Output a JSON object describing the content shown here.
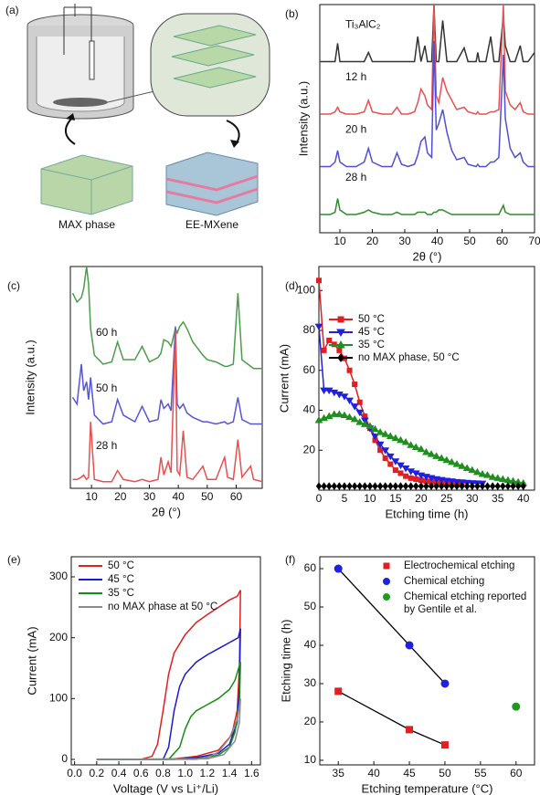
{
  "schematic": {
    "panel_label": "(a)",
    "labels": [
      "MAX phase",
      "EE-MXene"
    ]
  },
  "chart_data": [
    {
      "type": "line",
      "panel_label": "(b)",
      "x_label": "2θ (°)",
      "y_label": "Intensity (a.u.)",
      "legend": "inline",
      "x": [
        4,
        5,
        7,
        8.5,
        9.3,
        10,
        12,
        15,
        17.5,
        18.8,
        20,
        23,
        26,
        27.6,
        29,
        31,
        33,
        34,
        35,
        36.2,
        37,
        38.3,
        39,
        39.7,
        40.5,
        41.7,
        43,
        44.5,
        46,
        48.3,
        49.5,
        52,
        52.5,
        53,
        55,
        56.5,
        57.5,
        59,
        60.4,
        61,
        62.5,
        64,
        65.6,
        66.5,
        68,
        70
      ],
      "xlim": [
        3.8,
        70
      ],
      "xticks": [
        10,
        20,
        30,
        40,
        50,
        60,
        70
      ],
      "ylim": [
        0,
        100
      ],
      "series": [
        {
          "name": "Ti₃AlC₂",
          "color": "#333333",
          "values": [
            75,
            75,
            75,
            75,
            83,
            75,
            75,
            75,
            75,
            79,
            75,
            75,
            75,
            75,
            75,
            75,
            75,
            86,
            75,
            82,
            75,
            75,
            100,
            75,
            75,
            93,
            75,
            75,
            75,
            81,
            75,
            75,
            79,
            75,
            75,
            86,
            75,
            75,
            95,
            82,
            75,
            75,
            82,
            75,
            75,
            79
          ]
        },
        {
          "name": "12 h",
          "color": "#e8504f",
          "values": [
            52,
            52,
            52,
            53,
            55,
            53,
            52,
            52,
            53,
            58,
            53,
            52,
            52,
            55,
            52,
            52,
            53,
            57,
            63,
            60,
            56,
            54,
            100,
            60,
            57,
            68,
            62,
            58,
            54,
            55,
            53,
            52,
            53,
            52,
            52,
            53,
            53,
            54,
            100,
            62,
            56,
            54,
            57,
            53,
            52,
            52
          ]
        },
        {
          "name": "20 h",
          "color": "#4f4fd8",
          "values": [
            29,
            29,
            29,
            31,
            36,
            31,
            29,
            29,
            31,
            37,
            31,
            29,
            29,
            35,
            30,
            29,
            30,
            34,
            40,
            42,
            35,
            33,
            84,
            45,
            48,
            54,
            44,
            36,
            32,
            33,
            30,
            29,
            30,
            29,
            29,
            31,
            31,
            33,
            78,
            50,
            37,
            33,
            35,
            31,
            29,
            29
          ]
        },
        {
          "name": "28 h",
          "color": "#2e8b2e",
          "values": [
            8,
            8,
            8,
            9,
            15,
            10,
            8,
            8,
            9,
            10,
            9,
            8,
            8,
            9,
            8,
            8,
            8,
            9,
            9,
            9,
            8,
            8,
            9,
            9,
            10,
            10,
            9,
            8,
            8,
            8,
            8,
            8,
            8,
            8,
            8,
            8,
            8,
            8,
            12,
            9,
            8,
            8,
            8,
            8,
            8,
            8
          ]
        }
      ]
    },
    {
      "type": "line",
      "panel_label": "(c)",
      "x_label": "2θ (°)",
      "y_label": "Intensity (a.u.)",
      "legend": "inline",
      "x": [
        3.5,
        5,
        6.5,
        7.3,
        8.3,
        9,
        9.7,
        11,
        14,
        17,
        19,
        21,
        25,
        27.5,
        30,
        33,
        34,
        35,
        36.5,
        37.5,
        39,
        39.6,
        40.5,
        41.7,
        43,
        45,
        48.5,
        50,
        53,
        56,
        57,
        59,
        60.6,
        62,
        65,
        66,
        69
      ],
      "xlim": [
        2.7,
        69
      ],
      "xticks": [
        10,
        20,
        30,
        40,
        50,
        60
      ],
      "ylim": [
        0,
        100
      ],
      "series": [
        {
          "name": "60 h",
          "color": "#4a9e4a",
          "values": [
            88,
            84,
            86,
            90,
            100,
            92,
            72,
            60,
            56,
            57,
            66,
            58,
            58,
            64,
            57,
            59,
            61,
            67,
            66,
            64,
            72,
            70,
            73,
            75,
            72,
            66,
            60,
            58,
            57,
            55,
            55,
            56,
            88,
            58,
            55,
            54,
            54
          ]
        },
        {
          "name": "50 h",
          "color": "#5555d8",
          "values": [
            41,
            38,
            56,
            44,
            48,
            40,
            50,
            33,
            29,
            30,
            40,
            33,
            30,
            37,
            30,
            31,
            40,
            36,
            38,
            35,
            73,
            38,
            36,
            38,
            34,
            32,
            30,
            30,
            29,
            30,
            29,
            30,
            41,
            31,
            29,
            29,
            29
          ]
        },
        {
          "name": "28 h",
          "color": "#e8504f",
          "values": [
            4,
            4,
            5,
            6,
            4,
            5,
            30,
            4,
            3,
            3,
            8,
            4,
            3,
            4,
            3,
            4,
            14,
            6,
            12,
            7,
            71,
            8,
            6,
            26,
            5,
            4,
            10,
            4,
            4,
            14,
            5,
            4,
            22,
            5,
            10,
            4,
            3
          ]
        }
      ]
    },
    {
      "type": "line",
      "panel_label": "(d)",
      "x_label": "Etching time (h)",
      "y_label": "Current (mA)",
      "legend": "upper right",
      "x": [
        0,
        1,
        2,
        3,
        4,
        5,
        6,
        7,
        8,
        9,
        10,
        11,
        12,
        13,
        14,
        15,
        16,
        17,
        18,
        19,
        20,
        21,
        22,
        23,
        24,
        25,
        26,
        27,
        28,
        29,
        30,
        31,
        32,
        33,
        34,
        35,
        36,
        37,
        38,
        39,
        40
      ],
      "xlim": [
        0,
        42.2
      ],
      "xticks": [
        0,
        5,
        10,
        15,
        20,
        25,
        30,
        35,
        40
      ],
      "ylim": [
        0,
        112
      ],
      "yticks": [
        20,
        40,
        60,
        80,
        100
      ],
      "series": [
        {
          "name": "50 °C",
          "color": "#e02020",
          "marker": "square",
          "values": [
            105,
            70,
            75,
            73,
            70,
            66,
            60,
            53,
            44,
            37,
            31,
            25,
            20,
            16,
            13,
            10,
            8.5,
            7,
            6,
            5.5,
            5,
            4.5,
            4.2,
            4,
            3.8,
            3.6,
            3.5,
            3.4,
            3.3,
            null,
            null,
            null,
            null,
            null,
            null,
            null,
            null,
            null,
            null,
            null,
            null
          ]
        },
        {
          "name": "45 °C",
          "color": "#2020e0",
          "marker": "triangle-down",
          "values": [
            82,
            50,
            50,
            49,
            48,
            47,
            45,
            42,
            39,
            35,
            31,
            27,
            23,
            20,
            17,
            14.5,
            12.5,
            11,
            9.5,
            8.5,
            7.5,
            6.8,
            6.2,
            5.6,
            5.2,
            4.8,
            4.5,
            4.2,
            4,
            3.8,
            3.6,
            3.5,
            3.4,
            null,
            null,
            null,
            null,
            null,
            null,
            null,
            null
          ]
        },
        {
          "name": "35 °C",
          "color": "#1f8f1f",
          "marker": "triangle",
          "values": [
            35,
            36,
            37,
            38,
            38,
            37.5,
            36.5,
            35.5,
            34,
            33,
            32,
            30.5,
            29,
            28,
            27,
            26,
            25,
            24,
            22.5,
            21.5,
            20.5,
            19,
            18,
            17,
            16,
            15,
            14,
            13,
            12,
            11,
            10,
            9,
            8,
            7.5,
            6.5,
            6,
            5.5,
            5,
            4.5,
            4,
            3.5
          ]
        },
        {
          "name": "no MAX phase, 50 °C",
          "color": "#000000",
          "marker": "diamond",
          "values": [
            2,
            2,
            2,
            2,
            2,
            2,
            2,
            2,
            2,
            2,
            2,
            2,
            2,
            2,
            2,
            2,
            2,
            2,
            2,
            2,
            2,
            2,
            2,
            2,
            2,
            2,
            2,
            2,
            2,
            2,
            2,
            2,
            2,
            2,
            2,
            2,
            2,
            2,
            2,
            2,
            2
          ]
        }
      ]
    },
    {
      "type": "line",
      "panel_label": "(e)",
      "x_label": "Voltage (V vs Li⁺/Li)",
      "y_label": "Current (mA)",
      "legend": "upper left",
      "xlim": [
        -0.03,
        1.68
      ],
      "xticks": [
        {
          "value": 0,
          "label": "0.0"
        },
        0.2,
        0.4,
        0.6,
        0.8,
        {
          "value": 1,
          "label": "1.0"
        },
        1.2,
        1.4,
        1.6
      ],
      "ylim": [
        -9,
        333
      ],
      "yticks": [
        0,
        100,
        200,
        300
      ],
      "series": [
        {
          "name": "50 °C",
          "color": "#e02020",
          "x": [
            0.2,
            0.6,
            0.7,
            0.75,
            0.8,
            0.85,
            0.9,
            1.0,
            1.1,
            1.2,
            1.3,
            1.4,
            1.47,
            1.5,
            1.49,
            1.47,
            1.42,
            1.3,
            1.1,
            0.9,
            0.7,
            0.2
          ],
          "values": [
            0,
            0,
            5,
            25,
            80,
            140,
            175,
            205,
            225,
            238,
            250,
            262,
            268,
            278,
            150,
            80,
            40,
            15,
            5,
            1,
            0,
            0
          ]
        },
        {
          "name": "45 °C",
          "color": "#1a1ad0",
          "x": [
            0.2,
            0.8,
            0.85,
            0.9,
            0.95,
            1.0,
            1.1,
            1.2,
            1.3,
            1.4,
            1.48,
            1.5,
            1.49,
            1.47,
            1.4,
            1.3,
            1.1,
            0.9,
            0.2
          ],
          "values": [
            0,
            0,
            20,
            80,
            120,
            140,
            160,
            172,
            182,
            192,
            200,
            215,
            120,
            60,
            25,
            10,
            3,
            0,
            0
          ]
        },
        {
          "name": "35 °C",
          "color": "#168a16",
          "x": [
            0.2,
            0.85,
            0.95,
            1.0,
            1.05,
            1.1,
            1.2,
            1.3,
            1.4,
            1.45,
            1.5,
            1.49,
            1.45,
            1.4,
            1.3,
            1.1,
            0.2
          ],
          "values": [
            0,
            0,
            20,
            50,
            70,
            80,
            90,
            100,
            115,
            130,
            160,
            90,
            45,
            20,
            7,
            1,
            0
          ]
        },
        {
          "name": "no MAX phase at 50 °C",
          "color": "#8c8c8c",
          "x": [
            0.2,
            1.1,
            1.2,
            1.3,
            1.4,
            1.47,
            1.5,
            1.49,
            1.45,
            1.35,
            1.2,
            0.2
          ],
          "values": [
            0,
            0,
            3,
            12,
            35,
            65,
            100,
            60,
            30,
            8,
            1,
            0
          ]
        }
      ]
    },
    {
      "type": "scatter",
      "panel_label": "(f)",
      "x_label": "Etching temperature (°C)",
      "y_label": "Etching time (h)",
      "legend": "upper right",
      "line_color": "#000000",
      "xlim": [
        32.4,
        62.6
      ],
      "xticks": [
        35,
        40,
        45,
        50,
        55,
        60
      ],
      "ylim": [
        8.8,
        63.1
      ],
      "yticks": [
        10,
        20,
        30,
        40,
        50,
        60
      ],
      "series": [
        {
          "name": "Electrochemical etching",
          "color": "#e02020",
          "marker": "square",
          "x": [
            35,
            45,
            50
          ],
          "values": [
            28,
            18,
            14
          ]
        },
        {
          "name": "Chemical etching",
          "color": "#2020e0",
          "marker": "circle",
          "x": [
            35,
            45,
            50
          ],
          "values": [
            60,
            40,
            30
          ]
        },
        {
          "name": "Chemical etching reported by Gentile et al.",
          "color": "#1f9a1f",
          "marker": "circle",
          "x": [
            60
          ],
          "values": [
            24
          ]
        }
      ]
    }
  ]
}
